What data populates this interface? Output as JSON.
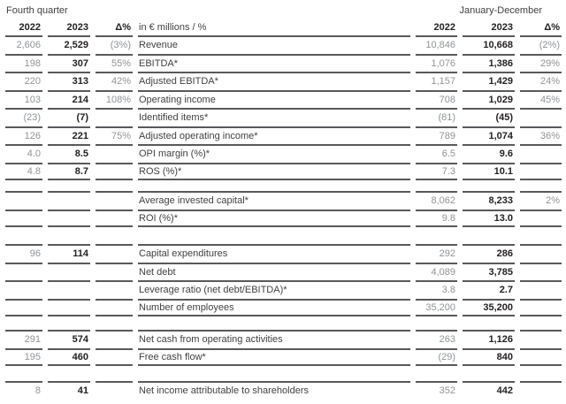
{
  "header": {
    "left_period": "Fourth quarter",
    "right_period": "January-December",
    "year_prev": "2022",
    "year_curr": "2023",
    "delta_label": "Δ%",
    "unit_label": "in € millions / %"
  },
  "colors": {
    "rule": "#58595b",
    "muted_text": "#919396",
    "strong_text": "#242123",
    "label_text": "#414143",
    "background": "#ffffff"
  },
  "table": {
    "column_order": [
      "q4_2022",
      "q4_2023",
      "q4_delta",
      "label",
      "jd_2022",
      "jd_2023",
      "jd_delta"
    ],
    "groups": [
      {
        "rows": [
          {
            "label": "Revenue",
            "q4": [
              "2,606",
              "2,529",
              "(3%)"
            ],
            "jd": [
              "10,846",
              "10,668",
              "(2%)"
            ]
          },
          {
            "label": "EBITDA*",
            "q4": [
              "198",
              "307",
              "55%"
            ],
            "jd": [
              "1,076",
              "1,386",
              "29%"
            ]
          },
          {
            "label": "Adjusted EBITDA*",
            "q4": [
              "220",
              "313",
              "42%"
            ],
            "jd": [
              "1,157",
              "1,429",
              "24%"
            ]
          },
          {
            "label": "Operating income",
            "q4": [
              "103",
              "214",
              "108%"
            ],
            "jd": [
              "708",
              "1,029",
              "45%"
            ]
          },
          {
            "label": "Identified items*",
            "q4": [
              "(23)",
              "(7)",
              ""
            ],
            "jd": [
              "(81)",
              "(45)",
              ""
            ]
          },
          {
            "label": "Adjusted operating income*",
            "q4": [
              "126",
              "221",
              "75%"
            ],
            "jd": [
              "789",
              "1,074",
              "36%"
            ]
          },
          {
            "label": "OPI margin (%)*",
            "q4": [
              "4.0",
              "8.5",
              ""
            ],
            "jd": [
              "6.5",
              "9.6",
              ""
            ]
          },
          {
            "label": "ROS (%)*",
            "q4": [
              "4.8",
              "8.7",
              ""
            ],
            "jd": [
              "7.3",
              "10.1",
              ""
            ]
          }
        ]
      },
      {
        "rows": [
          {
            "label": "Average invested capital*",
            "q4": [
              "",
              "",
              ""
            ],
            "jd": [
              "8,062",
              "8,233",
              "2%"
            ]
          },
          {
            "label": "ROI (%)*",
            "q4": [
              "",
              "",
              ""
            ],
            "jd": [
              "9.8",
              "13.0",
              ""
            ]
          }
        ]
      },
      {
        "rows": [
          {
            "label": "Capital expenditures",
            "q4": [
              "96",
              "114",
              ""
            ],
            "jd": [
              "292",
              "286",
              ""
            ]
          },
          {
            "label": "Net debt",
            "q4": [
              "",
              "",
              ""
            ],
            "jd": [
              "4,089",
              "3,785",
              ""
            ]
          },
          {
            "label": "Leverage ratio (net debt/EBITDA)*",
            "q4": [
              "",
              "",
              ""
            ],
            "jd": [
              "3.8",
              "2.7",
              ""
            ]
          },
          {
            "label": "Number of employees",
            "q4": [
              "",
              "",
              ""
            ],
            "jd": [
              "35,200",
              "35,200",
              ""
            ]
          }
        ]
      },
      {
        "rows": [
          {
            "label": "Net cash from operating activities",
            "q4": [
              "291",
              "574",
              ""
            ],
            "jd": [
              "263",
              "1,126",
              ""
            ]
          },
          {
            "label": "Free cash flow*",
            "q4": [
              "195",
              "460",
              ""
            ],
            "jd": [
              "(29)",
              "840",
              ""
            ]
          }
        ]
      },
      {
        "rows": [
          {
            "label": "Net income attributable to shareholders",
            "q4": [
              "8",
              "41",
              ""
            ],
            "jd": [
              "352",
              "442",
              ""
            ]
          }
        ]
      }
    ]
  }
}
